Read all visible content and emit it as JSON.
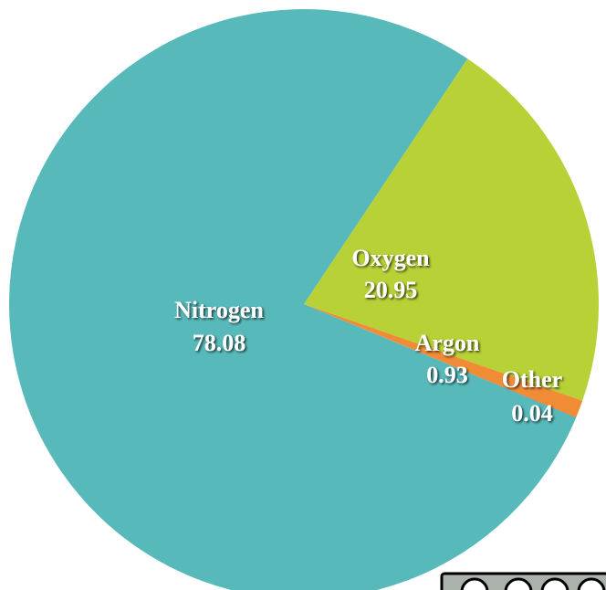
{
  "chart_data": {
    "type": "pie",
    "categories": [
      "Oxygen",
      "Argon",
      "Other",
      "Nitrogen"
    ],
    "values": [
      20.95,
      0.93,
      0.04,
      78.08
    ],
    "colors": [
      "#b8d136",
      "#f08c35",
      "#e2702c",
      "#58b9bb"
    ]
  }
}
